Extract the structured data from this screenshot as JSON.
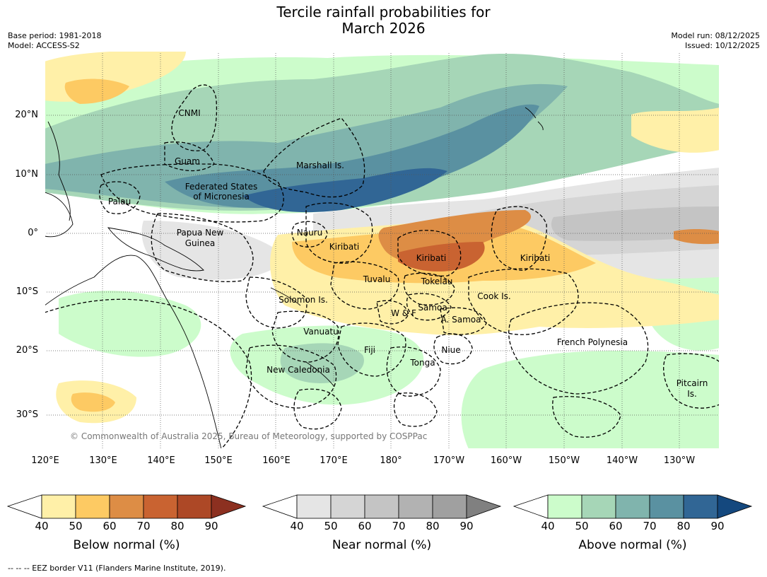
{
  "title_line1": "Tercile rainfall probabilities for",
  "title_line2": "March 2026",
  "base_period": "Base period: 1981-2018",
  "model": "Model: ACCESS-S2",
  "model_run": "Model run: 08/12/2025",
  "issued": "Issued: 10/12/2025",
  "lat_labels": [
    "20°N",
    "10°N",
    "0°",
    "10°S",
    "20°S",
    "30°S"
  ],
  "lon_labels": [
    "120°E",
    "130°E",
    "140°E",
    "150°E",
    "160°E",
    "170°E",
    "180°",
    "170°W",
    "160°W",
    "150°W",
    "140°W",
    "130°W"
  ],
  "copyright": "© Commonwealth of Australia 2025, Bureau of Meteorology, supported by COSPPac",
  "places": [
    "CNMI",
    "Guam",
    "Marshall Is.",
    "Federated States",
    "of Micronesia",
    "Palau",
    "Papua New",
    "Guinea",
    "Nauru",
    "Kiribati",
    "Kiribati",
    "Kiribati",
    "Tuvalu",
    "Tokelau",
    "Solomon Is.",
    "Cook Is.",
    "W & F",
    "Samoa",
    "A. Samoa",
    "Vanuatu",
    "Fiji",
    "Niue",
    "French Polynesia",
    "Tonga",
    "New Caledonia",
    "Pitcairn",
    "Is."
  ],
  "colorbars": [
    {
      "title": "Below normal (%)",
      "ticks": [
        "40",
        "50",
        "60",
        "70",
        "80",
        "90"
      ],
      "colors": [
        "#fff0a8",
        "#fdca63",
        "#dd8d45",
        "#c96331",
        "#ad4826",
        "#8c3020"
      ]
    },
    {
      "title": "Near normal (%)",
      "ticks": [
        "40",
        "50",
        "60",
        "70",
        "80",
        "90"
      ],
      "colors": [
        "#e5e5e5",
        "#d5d5d5",
        "#c4c4c4",
        "#b2b2b2",
        "#a0a0a0",
        "#808080"
      ]
    },
    {
      "title": "Above normal (%)",
      "ticks": [
        "40",
        "50",
        "60",
        "70",
        "80",
        "90"
      ],
      "colors": [
        "#ccfccb",
        "#a6d6b7",
        "#80b4ad",
        "#5a91a1",
        "#316695",
        "#14487e"
      ]
    }
  ],
  "footer": "--  --  -- EEZ border V11 (Flanders Marine Institute, 2019)."
}
